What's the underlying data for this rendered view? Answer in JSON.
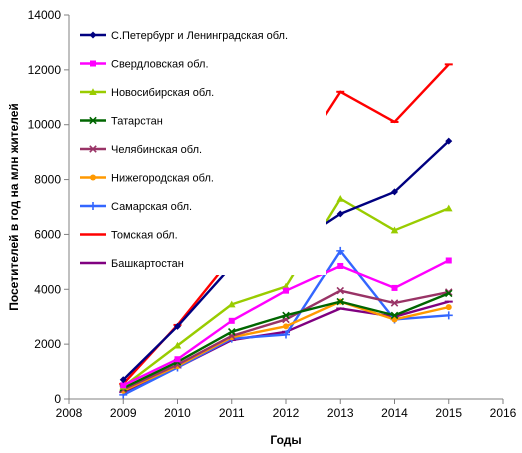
{
  "chart_data": {
    "type": "line",
    "xlabel": "Годы",
    "ylabel": "Посетителей в год на млн жителей",
    "xlim": [
      2008,
      2016
    ],
    "ylim": [
      0,
      14000
    ],
    "x_ticks": [
      "2008",
      "2009",
      "2010",
      "2011",
      "2012",
      "2013",
      "2014",
      "2015",
      "2016"
    ],
    "y_ticks": [
      "0",
      "2000",
      "4000",
      "6000",
      "8000",
      "10000",
      "12000",
      "14000"
    ],
    "grid": false,
    "legend_position": "top-left",
    "x": [
      2009,
      2010,
      2011,
      2012,
      2013,
      2014,
      2015
    ],
    "series": [
      {
        "name": "С.Петербург и Ленинградская обл.",
        "color": "#000080",
        "marker": "diamond",
        "values": [
          700,
          2650,
          4850,
          5450,
          6750,
          7550,
          9400
        ]
      },
      {
        "name": "Свердловская обл.",
        "color": "#ff00ff",
        "marker": "square",
        "values": [
          500,
          1450,
          2850,
          3950,
          4850,
          4050,
          5050
        ]
      },
      {
        "name": "Новосибирская обл.",
        "color": "#99cc00",
        "marker": "triangle",
        "values": [
          450,
          1950,
          3450,
          4100,
          7300,
          6150,
          6950
        ]
      },
      {
        "name": "Татарстан",
        "color": "#006600",
        "marker": "x",
        "values": [
          400,
          1350,
          2450,
          3050,
          3550,
          3050,
          3850
        ]
      },
      {
        "name": "Челябинская обл.",
        "color": "#993366",
        "marker": "x",
        "values": [
          350,
          1250,
          2300,
          2900,
          3950,
          3500,
          3900
        ]
      },
      {
        "name": "Нижегородская обл.",
        "color": "#ff9900",
        "marker": "circle",
        "values": [
          300,
          1200,
          2250,
          2650,
          3550,
          2900,
          3350
        ]
      },
      {
        "name": "Самарская обл.",
        "color": "#3366ff",
        "marker": "plus",
        "values": [
          150,
          1150,
          2200,
          2350,
          5400,
          2900,
          3050
        ]
      },
      {
        "name": "Томская обл.",
        "color": "#ff0000",
        "marker": "dash",
        "values": [
          550,
          2700,
          5150,
          8150,
          11200,
          10100,
          12200
        ]
      },
      {
        "name": "Башкартостан",
        "color": "#800080",
        "marker": "dash",
        "values": [
          250,
          1150,
          2150,
          2450,
          3300,
          3000,
          3550
        ]
      }
    ]
  }
}
